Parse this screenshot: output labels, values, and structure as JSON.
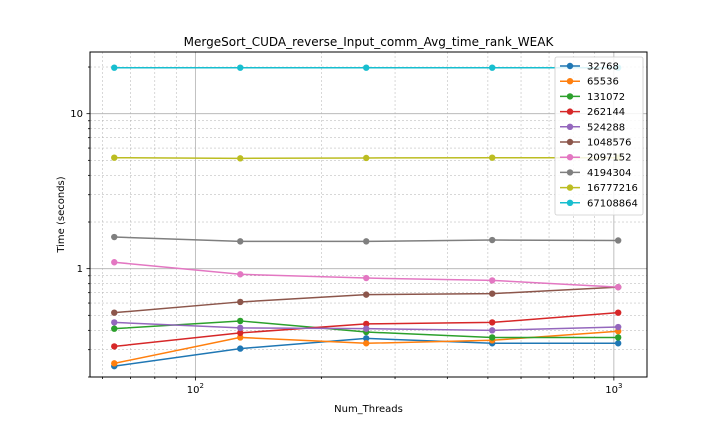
{
  "chart_data": {
    "type": "line",
    "title": "MergeSort_CUDA_reverse_Input_comm_Avg_time_rank_WEAK",
    "xlabel": "Num_Threads",
    "ylabel": "Time (seconds)",
    "xscale": "log",
    "yscale": "log",
    "xlim": [
      56,
      1200
    ],
    "ylim": [
      0.2,
      25
    ],
    "grid": true,
    "legend_position": "top-right",
    "x": [
      64,
      128,
      256,
      512,
      1024
    ],
    "x_tick_labels": [
      {
        "value": 100,
        "base": "10",
        "exp": "2"
      },
      {
        "value": 1000,
        "base": "10",
        "exp": "3"
      }
    ],
    "y_tick_labels": [
      {
        "value": 1,
        "label": "1"
      },
      {
        "value": 10,
        "label": "10"
      }
    ],
    "series": [
      {
        "name": "32768",
        "color": "#1f77b4",
        "values": [
          0.235,
          0.305,
          0.355,
          0.33,
          0.33
        ]
      },
      {
        "name": "65536",
        "color": "#ff7f0e",
        "values": [
          0.245,
          0.36,
          0.33,
          0.345,
          0.395
        ]
      },
      {
        "name": "131072",
        "color": "#2ca02c",
        "values": [
          0.41,
          0.46,
          0.39,
          0.36,
          0.36
        ]
      },
      {
        "name": "262144",
        "color": "#d62728",
        "values": [
          0.315,
          0.385,
          0.44,
          0.45,
          0.52
        ]
      },
      {
        "name": "524288",
        "color": "#9467bd",
        "values": [
          0.45,
          0.415,
          0.41,
          0.4,
          0.42
        ]
      },
      {
        "name": "1048576",
        "color": "#8c564b",
        "values": [
          0.52,
          0.61,
          0.68,
          0.69,
          0.76
        ]
      },
      {
        "name": "2097152",
        "color": "#e377c2",
        "values": [
          1.1,
          0.92,
          0.87,
          0.84,
          0.76
        ]
      },
      {
        "name": "4194304",
        "color": "#7f7f7f",
        "values": [
          1.6,
          1.5,
          1.5,
          1.53,
          1.52
        ]
      },
      {
        "name": "16777216",
        "color": "#bcbd22",
        "values": [
          5.2,
          5.15,
          5.18,
          5.2,
          5.2
        ]
      },
      {
        "name": "67108864",
        "color": "#17becf",
        "values": [
          19.8,
          19.8,
          19.8,
          19.8,
          19.8
        ]
      }
    ]
  }
}
